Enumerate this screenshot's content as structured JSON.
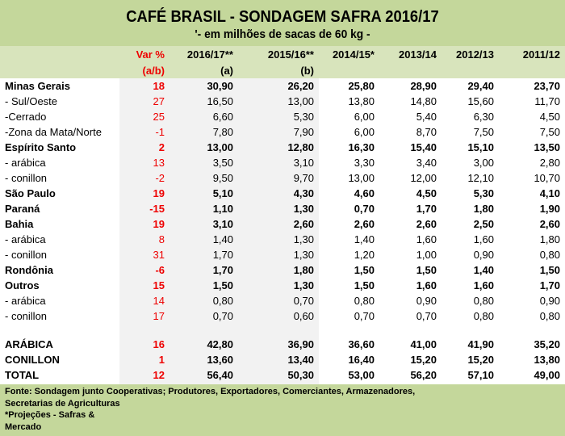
{
  "title": "CAFÉ BRASIL - SONDAGEM SAFRA 2016/17",
  "subtitle": "'- em milhões de sacas de 60 kg -",
  "header": {
    "var": "Var %",
    "var2": "(a/b)",
    "c1": "2016/17**",
    "c1b": "(a)",
    "c2": "2015/16**",
    "c2b": "(b)",
    "c3": "2014/15*",
    "c4": "2013/14",
    "c5": "2012/13",
    "c6": "2011/12"
  },
  "rows": [
    [
      "Minas Gerais",
      "18",
      "30,90",
      "26,20",
      "25,80",
      "28,90",
      "29,40",
      "23,70"
    ],
    [
      " - Sul/Oeste",
      "27",
      "16,50",
      "13,00",
      "13,80",
      "14,80",
      "15,60",
      "11,70"
    ],
    [
      " -Cerrado",
      "25",
      "6,60",
      "5,30",
      "6,00",
      "5,40",
      "6,30",
      "4,50"
    ],
    [
      " -Zona da Mata/Norte",
      "-1",
      "7,80",
      "7,90",
      "6,00",
      "8,70",
      "7,50",
      "7,50"
    ],
    [
      "Espírito Santo",
      "2",
      "13,00",
      "12,80",
      "16,30",
      "15,40",
      "15,10",
      "13,50"
    ],
    [
      " - arábica",
      "13",
      "3,50",
      "3,10",
      "3,30",
      "3,40",
      "3,00",
      "2,80"
    ],
    [
      " - conillon",
      "-2",
      "9,50",
      "9,70",
      "13,00",
      "12,00",
      "12,10",
      "10,70"
    ],
    [
      "São Paulo",
      "19",
      "5,10",
      "4,30",
      "4,60",
      "4,50",
      "5,30",
      "4,10"
    ],
    [
      "Paraná",
      "-15",
      "1,10",
      "1,30",
      "0,70",
      "1,70",
      "1,80",
      "1,90"
    ],
    [
      "Bahia",
      "19",
      "3,10",
      "2,60",
      "2,60",
      "2,60",
      "2,50",
      "2,60"
    ],
    [
      " - arábica",
      "8",
      "1,40",
      "1,30",
      "1,40",
      "1,60",
      "1,60",
      "1,80"
    ],
    [
      " - conillon",
      "31",
      "1,70",
      "1,30",
      "1,20",
      "1,00",
      "0,90",
      "0,80"
    ],
    [
      "Rondônia",
      "-6",
      "1,70",
      "1,80",
      "1,50",
      "1,50",
      "1,40",
      "1,50"
    ],
    [
      "Outros",
      "15",
      "1,50",
      "1,30",
      "1,50",
      "1,60",
      "1,60",
      "1,70"
    ],
    [
      " - arábica",
      "14",
      "0,80",
      "0,70",
      "0,80",
      "0,90",
      "0,80",
      "0,90"
    ],
    [
      " - conillon",
      "17",
      "0,70",
      "0,60",
      "0,70",
      "0,70",
      "0,80",
      "0,80"
    ]
  ],
  "totals": [
    [
      "ARÁBICA",
      "16",
      "42,80",
      "36,90",
      "36,60",
      "41,00",
      "41,90",
      "35,20"
    ],
    [
      "CONILLON",
      "1",
      "13,60",
      "13,40",
      "16,40",
      "15,20",
      "15,20",
      "13,80"
    ],
    [
      "TOTAL",
      "12",
      "56,40",
      "50,30",
      "53,00",
      "56,20",
      "57,10",
      "49,00"
    ]
  ],
  "footer": [
    "Fonte: Sondagem junto Cooperativas; Produtores, Exportadores, Comerciantes, Armazenadores,",
    "Secretarias de Agriculturas",
    "*Projeções  - Safras  &",
    "Mercado"
  ]
}
